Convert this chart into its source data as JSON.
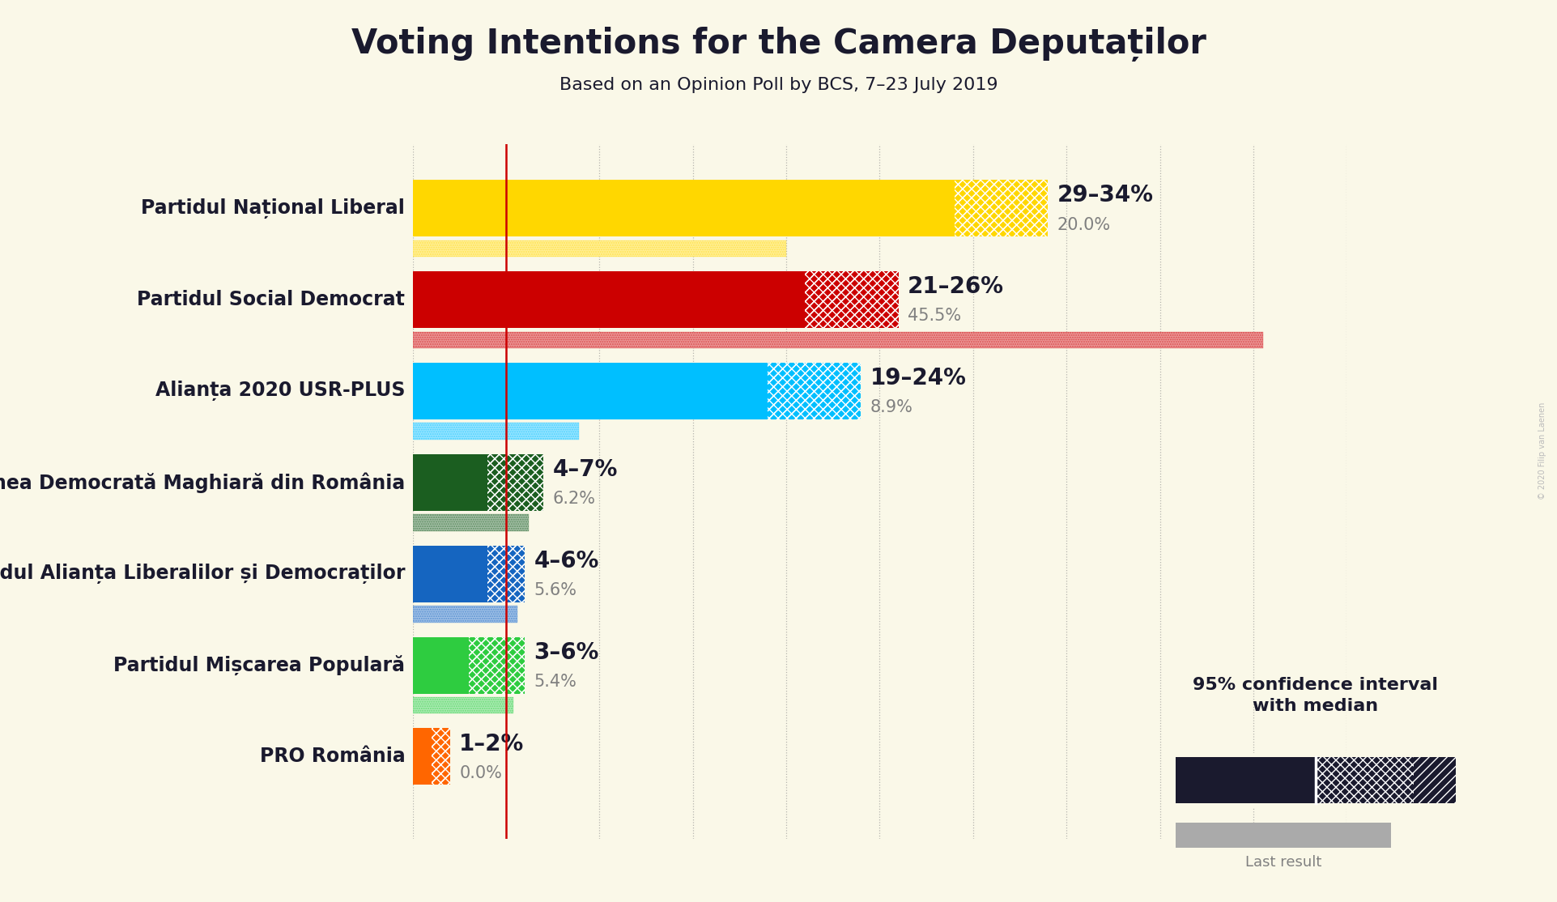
{
  "title": "Voting Intentions for the Camera Deputaților",
  "subtitle": "Based on an Opinion Poll by BCS, 7–23 July 2019",
  "background_color": "#faf8e8",
  "watermark": "© 2020 Filip van Laenen",
  "parties": [
    {
      "name": "Partidul Național Liberal",
      "ci_low": 29,
      "ci_high": 34,
      "median": 31.5,
      "last_result": 20.0,
      "color": "#FFD700",
      "label": "29–34%",
      "last_label": "20.0%"
    },
    {
      "name": "Partidul Social Democrat",
      "ci_low": 21,
      "ci_high": 26,
      "median": 23.5,
      "last_result": 45.5,
      "color": "#CC0000",
      "label": "21–26%",
      "last_label": "45.5%"
    },
    {
      "name": "Alianța 2020 USR-PLUS",
      "ci_low": 19,
      "ci_high": 24,
      "median": 21.5,
      "last_result": 8.9,
      "color": "#00BFFF",
      "label": "19–24%",
      "last_label": "8.9%"
    },
    {
      "name": "Uniunea Democrată Maghiară din România",
      "ci_low": 4,
      "ci_high": 7,
      "median": 5.5,
      "last_result": 6.2,
      "color": "#1B5E20",
      "label": "4–7%",
      "last_label": "6.2%"
    },
    {
      "name": "Partidul Alianța Liberalilor și Democraților",
      "ci_low": 4,
      "ci_high": 6,
      "median": 5.0,
      "last_result": 5.6,
      "color": "#1565C0",
      "label": "4–6%",
      "last_label": "5.6%"
    },
    {
      "name": "Partidul Mișcarea Populară",
      "ci_low": 3,
      "ci_high": 6,
      "median": 4.5,
      "last_result": 5.4,
      "color": "#2ECC40",
      "label": "3–6%",
      "last_label": "5.4%"
    },
    {
      "name": "PRO România",
      "ci_low": 1,
      "ci_high": 2,
      "median": 1.5,
      "last_result": 0.0,
      "color": "#FF6600",
      "label": "1–2%",
      "last_label": "0.0%"
    }
  ],
  "xlim": [
    0,
    50
  ],
  "bar_height": 0.62,
  "last_bar_height": 0.18,
  "last_bar_gap": 0.04,
  "threshold_line_x": 5,
  "threshold_line_color": "#CC0000",
  "text_color": "#1a1a2e",
  "grid_color": "#888888",
  "title_fontsize": 30,
  "subtitle_fontsize": 16,
  "party_fontsize": 17,
  "label_fontsize": 20,
  "last_label_fontsize": 15,
  "legend_fontsize": 16,
  "navy": "#1a1a2e",
  "gray_last": "#999988"
}
